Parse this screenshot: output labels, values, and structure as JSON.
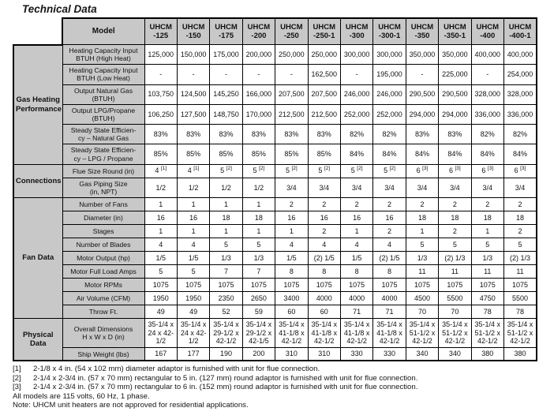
{
  "page": {
    "title": "Technical Data"
  },
  "table": {
    "corner_label": "Model",
    "columns": [
      "UHCM\n-125",
      "UHCM\n-150",
      "UHCM\n-175",
      "UHCM\n-200",
      "UHCM\n-250",
      "UHCM\n-250-1",
      "UHCM\n-300",
      "UHCM\n-300-1",
      "UHCM\n-350",
      "UHCM\n-350-1",
      "UHCM\n-400",
      "UHCM\n-400-1"
    ],
    "groups": [
      {
        "label": "Gas Heating\nPerformance",
        "rows": [
          {
            "label": "Heating Capacity Input\nBTUH (High Heat)",
            "tall": true,
            "values": [
              "125,000",
              "150,000",
              "175,000",
              "200,000",
              "250,000",
              "250,000",
              "300,000",
              "300,000",
              "350,000",
              "350,000",
              "400,000",
              "400,000"
            ]
          },
          {
            "label": "Heating Capacity Input\nBTUH (Low Heat)",
            "tall": true,
            "values": [
              "-",
              "-",
              "-",
              "-",
              "-",
              "162,500",
              "-",
              "195,000",
              "-",
              "225,000",
              "-",
              "254,000"
            ]
          },
          {
            "label": "Output Natural Gas\n(BTUH)",
            "tall": true,
            "values": [
              "103,750",
              "124,500",
              "145,250",
              "166,000",
              "207,500",
              "207,500",
              "246,000",
              "246,000",
              "290,500",
              "290,500",
              "328,000",
              "328,000"
            ]
          },
          {
            "label": "Output LPG/Propane\n(BTUH)",
            "tall": true,
            "values": [
              "106,250",
              "127,500",
              "148,750",
              "170,000",
              "212,500",
              "212,500",
              "252,000",
              "252,000",
              "294,000",
              "294,000",
              "336,000",
              "336,000"
            ]
          },
          {
            "label": "Steady State Efficien-\ncy – Natural Gas",
            "tall": true,
            "values": [
              "83%",
              "83%",
              "83%",
              "83%",
              "83%",
              "83%",
              "82%",
              "82%",
              "83%",
              "83%",
              "82%",
              "82%"
            ]
          },
          {
            "label": "Steady State Efficien-\ncy – LPG / Propane",
            "tall": true,
            "values": [
              "85%",
              "85%",
              "85%",
              "85%",
              "85%",
              "85%",
              "84%",
              "84%",
              "84%",
              "84%",
              "84%",
              "84%"
            ]
          }
        ]
      },
      {
        "label": "Connections",
        "rows": [
          {
            "label": "Flue Size Round (in)",
            "values": [
              "4 [1]",
              "4 [1]",
              "5 [2]",
              "5 [2]",
              "5 [2]",
              "5 [2]",
              "5 [2]",
              "5 [2]",
              "6 [3]",
              "6 [3]",
              "6 [3]",
              "6 [3]"
            ]
          },
          {
            "label": "Gas Piping Size\n(in, NPT)",
            "tall": true,
            "values": [
              "1/2",
              "1/2",
              "1/2",
              "1/2",
              "3/4",
              "3/4",
              "3/4",
              "3/4",
              "3/4",
              "3/4",
              "3/4",
              "3/4"
            ]
          }
        ]
      },
      {
        "label": "Fan Data",
        "rows": [
          {
            "label": "Number of Fans",
            "values": [
              "1",
              "1",
              "1",
              "1",
              "2",
              "2",
              "2",
              "2",
              "2",
              "2",
              "2",
              "2"
            ]
          },
          {
            "label": "Diameter (in)",
            "values": [
              "16",
              "16",
              "18",
              "18",
              "16",
              "16",
              "16",
              "16",
              "18",
              "18",
              "18",
              "18"
            ]
          },
          {
            "label": "Stages",
            "values": [
              "1",
              "1",
              "1",
              "1",
              "1",
              "2",
              "1",
              "2",
              "1",
              "2",
              "1",
              "2"
            ]
          },
          {
            "label": "Number of Blades",
            "values": [
              "4",
              "4",
              "5",
              "5",
              "4",
              "4",
              "4",
              "4",
              "5",
              "5",
              "5",
              "5"
            ]
          },
          {
            "label": "Motor Output (hp)",
            "values": [
              "1/5",
              "1/5",
              "1/3",
              "1/3",
              "1/5",
              "(2) 1/5",
              "1/5",
              "(2) 1/5",
              "1/3",
              "(2) 1/3",
              "1/3",
              "(2) 1/3"
            ]
          },
          {
            "label": "Motor Full Load Amps",
            "values": [
              "5",
              "5",
              "7",
              "7",
              "8",
              "8",
              "8",
              "8",
              "11",
              "11",
              "11",
              "11"
            ]
          },
          {
            "label": "Motor RPMs",
            "values": [
              "1075",
              "1075",
              "1075",
              "1075",
              "1075",
              "1075",
              "1075",
              "1075",
              "1075",
              "1075",
              "1075",
              "1075"
            ]
          },
          {
            "label": "Air Volume (CFM)",
            "values": [
              "1950",
              "1950",
              "2350",
              "2650",
              "3400",
              "4000",
              "4000",
              "4000",
              "4500",
              "5500",
              "4750",
              "5500"
            ]
          },
          {
            "label": "Throw Ft.",
            "values": [
              "49",
              "49",
              "52",
              "59",
              "60",
              "60",
              "71",
              "71",
              "70",
              "70",
              "78",
              "78"
            ]
          }
        ]
      },
      {
        "label": "Physical\nData",
        "rows": [
          {
            "label": "Overall Dimensions\nH x W x D (in)",
            "xtall": true,
            "values": [
              "35-1/4 x 24 x 42-1/2",
              "35-1/4 x 24 x 42-1/2",
              "35-1/4 x 29-1/2 x 42-1/2",
              "35-1/4 x 29-1/2 x 42-1/5",
              "35-1/4 x 41-1/8 x 42-1/2",
              "35-1/4 x 41-1/8 x 42-1/2",
              "35-1/4 x 41-1/8 x 42-1/2",
              "35-1/4 x 41-1/8 x 42-1/2",
              "35-1/4 x 51-1/2 x 42-1/2",
              "35-1/4 x 51-1/2 x 42-1/2",
              "35-1/4 x 51-1/2 x 42-1/2",
              "35-1/4 x 51-1/2 x 42-1/2"
            ]
          },
          {
            "label": "Ship Weight (lbs)",
            "values": [
              "167",
              "177",
              "190",
              "200",
              "310",
              "310",
              "330",
              "330",
              "340",
              "340",
              "380",
              "380"
            ]
          }
        ]
      }
    ]
  },
  "footnotes": [
    {
      "marker": "[1]",
      "text": "2-1/8 x 4 in. (54 x 102 mm) diameter adaptor is furnished with unit for flue connection."
    },
    {
      "marker": "[2]",
      "text": "2-1/4 x 2-3/4 in. (57 x 70 mm) rectangular to 5 in. (127 mm) round adaptor is furnished with unit for flue connection."
    },
    {
      "marker": "[3]",
      "text": "2-1/4 x 2-3/4 in. (57 x 70 mm) rectangular to 6 in. (152 mm) round adaptor is furnished with unit for flue connection."
    }
  ],
  "voltage_note": "All models are 115 volts, 60 Hz, 1 phase.",
  "residential_note": "Note:  UHCM unit heaters are not approved for residential applications.",
  "colors": {
    "header_gray": "#c8c8c8",
    "border": "#000000",
    "background": "#ffffff"
  }
}
